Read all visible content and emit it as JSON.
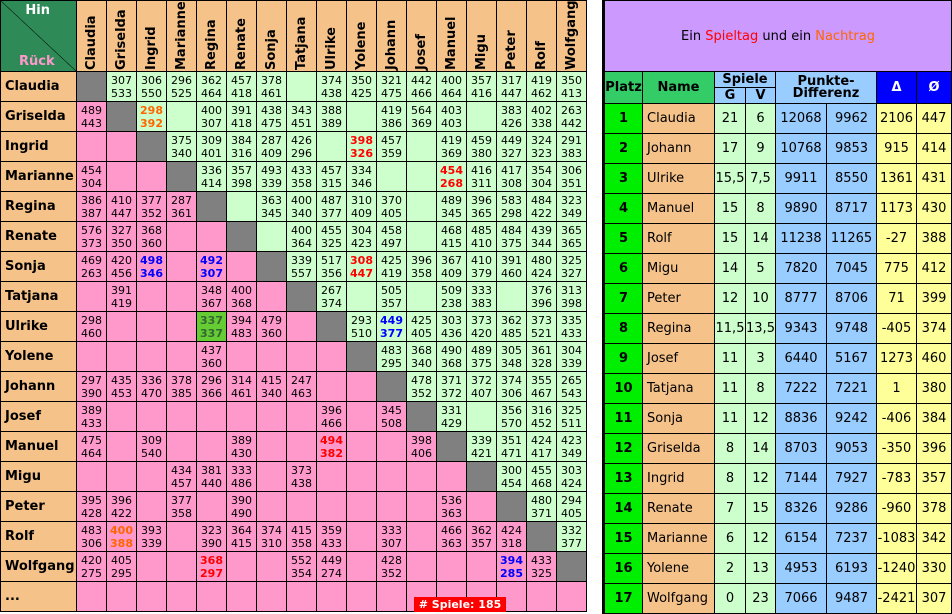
{
  "corner": {
    "hin": "Hin",
    "rueck": "Rück"
  },
  "names": [
    "Claudia",
    "Griselda",
    "Ingrid",
    "Marianne",
    "Regina",
    "Renate",
    "Sonja",
    "Tatjana",
    "Ulrike",
    "Yolene",
    "Johann",
    "Josef",
    "Manuel",
    "Migu",
    "Peter",
    "Rolf",
    "Wolfgang"
  ],
  "extra_row_label": "...",
  "grid": [
    [
      null,
      "307/533",
      "306/550",
      "296/525",
      "362/464",
      "457/418",
      "378/461",
      "",
      "374/438",
      "350/425",
      "321/475",
      "442/466",
      "400/464",
      "357/416",
      "317/447",
      "419/462",
      "350/413"
    ],
    [
      "489/443",
      null,
      "298/392",
      "",
      "400/307",
      "391/418",
      "438/475",
      "343/451",
      "388/389",
      "",
      "419/386",
      "564/369",
      "403/403",
      "",
      "383/426",
      "402/338",
      "263/442"
    ],
    [
      "",
      "",
      null,
      "375/340",
      "309/401",
      "384/316",
      "287/409",
      "426/296",
      "",
      "398/326",
      "457/359",
      "",
      "419/369",
      "459/380",
      "449/327",
      "324/323",
      "291/383"
    ],
    [
      "454/304",
      "",
      "",
      null,
      "336/414",
      "357/398",
      "493/339",
      "433/358",
      "457/315",
      "334/346",
      "",
      "",
      "454/268",
      "416/311",
      "417/308",
      "354/304",
      "306/351"
    ],
    [
      "386/387",
      "410/447",
      "377/352",
      "287/361",
      null,
      "",
      "363/345",
      "400/340",
      "487/377",
      "310/409",
      "370/405",
      "",
      "489/345",
      "396/365",
      "583/298",
      "484/422",
      "323/349"
    ],
    [
      "576/373",
      "327/350",
      "368/360",
      "",
      "",
      null,
      "",
      "400/364",
      "455/325",
      "304/423",
      "458/497",
      "",
      "468/415",
      "485/410",
      "484/375",
      "439/344",
      "365/365"
    ],
    [
      "469/263",
      "420/456",
      "498/346",
      "",
      "492/307",
      "",
      null,
      "339/557",
      "517/356",
      "308/447",
      "425/419",
      "396/358",
      "367/409",
      "410/379",
      "391/460",
      "480/424",
      "325/327"
    ],
    [
      "",
      "391/419",
      "",
      "",
      "348/367",
      "400/368",
      "",
      null,
      "267/374",
      "",
      "505/357",
      "",
      "509/238",
      "333/383",
      "",
      "376/396",
      "313/398"
    ],
    [
      "298/460",
      "",
      "",
      "",
      "337/337",
      "394/483",
      "479/360",
      "",
      null,
      "293/510",
      "449/377",
      "425/405",
      "303/436",
      "373/420",
      "362/485",
      "373/521",
      "335/433"
    ],
    [
      "",
      "",
      "",
      "",
      "437/360",
      "",
      "",
      "",
      "",
      null,
      "483/295",
      "368/340",
      "490/368",
      "489/375",
      "305/348",
      "361/328",
      "304/339"
    ],
    [
      "297/390",
      "435/453",
      "336/470",
      "378/385",
      "296/366",
      "314/461",
      "415/340",
      "247/463",
      "",
      "",
      null,
      "478/352",
      "371/372",
      "372/407",
      "374/306",
      "355/467",
      "265/543"
    ],
    [
      "389/433",
      "",
      "",
      "",
      "",
      "",
      "",
      "",
      "396/466",
      "",
      "345/508",
      null,
      "331/429",
      "",
      "356/570",
      "316/452",
      "325/511"
    ],
    [
      "475/464",
      "",
      "309/540",
      "",
      "",
      "389/430",
      "",
      "",
      "494/382",
      "",
      "",
      "398/406",
      null,
      "339/421",
      "351/471",
      "424/417",
      "423/349"
    ],
    [
      "",
      "",
      "",
      "434/457",
      "381/440",
      "333/486",
      "",
      "373/438",
      "",
      "",
      "",
      "",
      "",
      null,
      "300/454",
      "455/468",
      "303/424"
    ],
    [
      "395/428",
      "396/422",
      "",
      "377/358",
      "",
      "390/490",
      "",
      "",
      "",
      "",
      "",
      "",
      "536/363",
      "",
      null,
      "480/371",
      "294/405"
    ],
    [
      "483/306",
      "400/388",
      "393/339",
      "",
      "323/390",
      "364/415",
      "374/310",
      "415/358",
      "359/433",
      "",
      "333/307",
      "",
      "466/363",
      "362/357",
      "424/318",
      null,
      "332/377"
    ],
    [
      "420/275",
      "405/295",
      "",
      "",
      "368/297",
      "",
      "",
      "552/354",
      "449/274",
      "",
      "428/352",
      "",
      "",
      "",
      "394/285",
      "433/325",
      null
    ],
    [
      "",
      "",
      "",
      "",
      "",
      "",
      "",
      "",
      "",
      "",
      "",
      "",
      "",
      "",
      "",
      "",
      ""
    ]
  ],
  "styles": {
    "1_2": "orange",
    "15_1": "orange",
    "2_9": "red",
    "3_12": "red",
    "6_9": "red",
    "12_8": "red",
    "16_4": "red",
    "6_2": "blue",
    "6_4": "blue",
    "8_10": "blue",
    "16_14": "blue",
    "8_4": "hl"
  },
  "games_badge": {
    "label": "# Spiele:",
    "count": "185"
  },
  "standings": {
    "title_pre": "Ein ",
    "title_red": "Spieltag",
    "title_mid": " und ein ",
    "title_orange": "Nachtrag",
    "h_platz": "Platz",
    "h_name": "Name",
    "h_spiele": "Spiele",
    "h_g": "G",
    "h_v": "V",
    "h_diff": "Punkte-Differenz",
    "h_delta": "Δ",
    "h_avg": "Ø",
    "rows": [
      [
        "1",
        "Claudia",
        "21",
        "6",
        "12068",
        "9962",
        "2106",
        "447"
      ],
      [
        "2",
        "Johann",
        "17",
        "9",
        "10768",
        "9853",
        "915",
        "414"
      ],
      [
        "3",
        "Ulrike",
        "15,5",
        "7,5",
        "9911",
        "8550",
        "1361",
        "431"
      ],
      [
        "4",
        "Manuel",
        "15",
        "8",
        "9890",
        "8717",
        "1173",
        "430"
      ],
      [
        "5",
        "Rolf",
        "15",
        "14",
        "11238",
        "11265",
        "-27",
        "388"
      ],
      [
        "6",
        "Migu",
        "14",
        "5",
        "7820",
        "7045",
        "775",
        "412"
      ],
      [
        "7",
        "Peter",
        "12",
        "10",
        "8777",
        "8706",
        "71",
        "399"
      ],
      [
        "8",
        "Regina",
        "11,5",
        "13,5",
        "9343",
        "9748",
        "-405",
        "374"
      ],
      [
        "9",
        "Josef",
        "11",
        "3",
        "6440",
        "5167",
        "1273",
        "460"
      ],
      [
        "10",
        "Tatjana",
        "11",
        "8",
        "7222",
        "7221",
        "1",
        "380"
      ],
      [
        "11",
        "Sonja",
        "11",
        "12",
        "8836",
        "9242",
        "-406",
        "384"
      ],
      [
        "12",
        "Griselda",
        "8",
        "14",
        "8703",
        "9053",
        "-350",
        "396"
      ],
      [
        "13",
        "Ingrid",
        "8",
        "12",
        "7144",
        "7927",
        "-783",
        "357"
      ],
      [
        "14",
        "Renate",
        "7",
        "15",
        "8326",
        "9286",
        "-960",
        "378"
      ],
      [
        "15",
        "Marianne",
        "6",
        "12",
        "6154",
        "7237",
        "-1083",
        "342"
      ],
      [
        "16",
        "Yolene",
        "2",
        "13",
        "4953",
        "6193",
        "-1240",
        "330"
      ],
      [
        "17",
        "Wolfgang",
        "0",
        "23",
        "7066",
        "9487",
        "-2421",
        "307"
      ]
    ]
  },
  "colors": {
    "upper": "#ccffcc",
    "lower": "#ff99cc",
    "diag": "#808080",
    "header": "#f5c28a",
    "accent_red": "#ff0000",
    "accent_blue": "#0000ff"
  }
}
